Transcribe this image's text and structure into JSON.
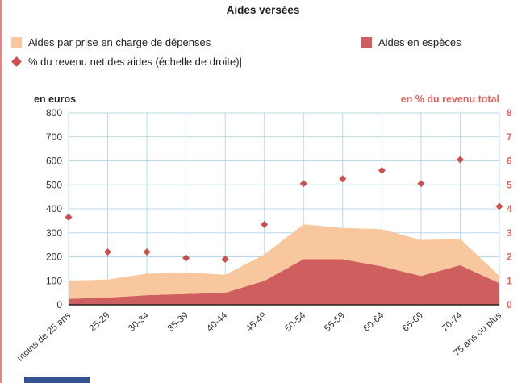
{
  "page": {
    "title": "Aides versées"
  },
  "legend": [
    {
      "label": "Aides par prise en charge de dépenses",
      "marker": "square",
      "color": "#f9c79e"
    },
    {
      "label": "Aides en espèces",
      "marker": "square",
      "color": "#ce5f5e"
    },
    {
      "label": "% du revenu net des aides (échelle de droite)|",
      "marker": "diamond",
      "color": "#c9504e"
    }
  ],
  "chart_data": {
    "type": "area",
    "stacked": true,
    "title": "Aides versées",
    "grid": true,
    "grid_color": "#b9d9ea",
    "axis_color": "#222222",
    "tick_color_left": "#333333",
    "tick_color_right": "#e4635c",
    "categories": [
      "moins de 25 ans",
      "25-29",
      "30-34",
      "35-39",
      "40-44",
      "45-49",
      "50-54",
      "55-59",
      "60-64",
      "65-69",
      "70-74",
      "75 ans ou plus"
    ],
    "series": [
      {
        "name": "Aides en espèces",
        "axis": "left",
        "color": "#ce5f5e",
        "values": [
          25,
          30,
          40,
          45,
          50,
          100,
          190,
          190,
          160,
          120,
          165,
          90
        ]
      },
      {
        "name": "Aides par prise en charge de dépenses",
        "axis": "left",
        "color": "#f9c79e",
        "values": [
          75,
          75,
          90,
          90,
          75,
          110,
          145,
          130,
          155,
          150,
          110,
          30
        ]
      }
    ],
    "point_series": {
      "name": "% du revenu net des aides (échelle de droite)",
      "axis": "right",
      "marker": "diamond",
      "color": "#c9504e",
      "values": [
        3.65,
        2.2,
        2.2,
        1.95,
        1.9,
        3.35,
        5.05,
        5.25,
        5.6,
        5.05,
        6.05,
        4.1
      ]
    },
    "left_axis": {
      "label": "en euros",
      "min": 0,
      "max": 800,
      "step": 100
    },
    "right_axis": {
      "label": "en % du revenu total",
      "min": 0,
      "max": 8,
      "step": 1
    }
  }
}
